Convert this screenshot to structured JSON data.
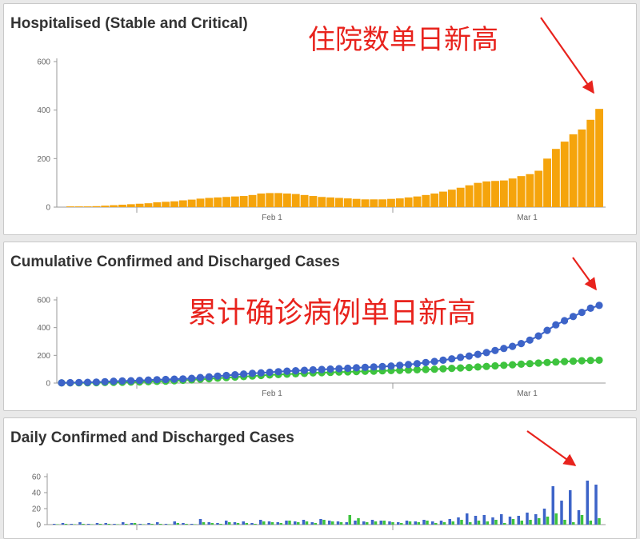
{
  "charts": {
    "hospitalised": {
      "title": "Hospitalised (Stable and Critical)"
    },
    "cumulative": {
      "title": "Cumulative Confirmed and Discharged Cases"
    },
    "daily": {
      "title": "Daily Confirmed and Discharged Cases"
    }
  },
  "annotations": {
    "hospitalised": "住院数单日新高",
    "cumulative": "累计确诊病例单日新高"
  },
  "colors": {
    "hospitalised": "#f5a40c",
    "confirmed": "#3d64c8",
    "discharged": "#3ec33e",
    "annotation": "#e8231d",
    "axis": "#999999"
  },
  "chart_data": [
    {
      "type": "bar",
      "title": "Hospitalised (Stable and Critical)",
      "ylim": [
        0,
        600
      ],
      "y_ticks": [
        "0",
        "200",
        "400",
        "600"
      ],
      "x_ticks": [
        "Feb 1",
        "Mar 1"
      ],
      "series": [
        {
          "values": [
            3,
            3,
            3,
            4,
            6,
            8,
            10,
            12,
            14,
            16,
            20,
            22,
            24,
            28,
            31,
            35,
            38,
            40,
            42,
            44,
            46,
            50,
            56,
            58,
            58,
            56,
            54,
            50,
            46,
            42,
            40,
            38,
            36,
            34,
            32,
            32,
            32,
            34,
            36,
            40,
            44,
            50,
            56,
            64,
            72,
            80,
            90,
            100,
            106,
            108,
            110,
            118,
            128,
            136,
            150,
            200,
            240,
            270,
            300,
            320,
            360,
            405
          ]
        }
      ]
    },
    {
      "type": "line",
      "title": "Cumulative Confirmed and Discharged Cases",
      "ylim": [
        0,
        600
      ],
      "y_ticks": [
        "0",
        "200",
        "400",
        "600"
      ],
      "x_ticks": [
        "Feb 1",
        "Mar 1"
      ],
      "series": [
        {
          "values": [
            2,
            3,
            4,
            5,
            7,
            10,
            13,
            15,
            17,
            19,
            22,
            24,
            26,
            28,
            30,
            34,
            40,
            45,
            50,
            55,
            60,
            65,
            70,
            74,
            78,
            82,
            86,
            89,
            92,
            95,
            98,
            101,
            104,
            107,
            110,
            113,
            116,
            119,
            123,
            128,
            133,
            140,
            148,
            156,
            165,
            175,
            185,
            195,
            207,
            220,
            235,
            250,
            265,
            285,
            310,
            340,
            380,
            420,
            450,
            480,
            510,
            540,
            560
          ]
        },
        {
          "values": [
            1,
            1,
            2,
            2,
            3,
            4,
            5,
            6,
            7,
            8,
            10,
            12,
            14,
            17,
            20,
            23,
            27,
            31,
            35,
            39,
            43,
            47,
            51,
            55,
            58,
            61,
            64,
            67,
            70,
            73,
            75,
            77,
            79,
            81,
            83,
            85,
            86,
            88,
            90,
            92,
            94,
            96,
            98,
            100,
            103,
            106,
            109,
            112,
            116,
            120,
            124,
            128,
            132,
            136,
            140,
            144,
            148,
            152,
            155,
            158,
            161,
            163,
            165
          ]
        }
      ]
    },
    {
      "type": "bar",
      "title": "Daily Confirmed and Discharged Cases",
      "ylim": [
        0,
        60
      ],
      "y_ticks": [
        "0",
        "20",
        "40",
        "60"
      ],
      "series": [
        {
          "values": [
            1,
            2,
            1,
            3,
            1,
            2,
            2,
            1,
            3,
            2,
            1,
            2,
            3,
            1,
            4,
            2,
            1,
            7,
            3,
            2,
            5,
            3,
            4,
            2,
            6,
            4,
            3,
            5,
            4,
            6,
            3,
            7,
            5,
            4,
            3,
            5,
            4,
            6,
            5,
            4,
            3,
            5,
            4,
            6,
            4,
            5,
            7,
            9,
            14,
            11,
            12,
            9,
            13,
            10,
            11,
            15,
            13,
            20,
            48,
            30,
            43,
            18,
            55,
            50
          ]
        },
        {
          "values": [
            0,
            1,
            0,
            1,
            0,
            1,
            1,
            0,
            1,
            2,
            0,
            1,
            1,
            0,
            2,
            1,
            0,
            3,
            2,
            1,
            3,
            2,
            2,
            1,
            4,
            3,
            2,
            5,
            3,
            4,
            2,
            6,
            4,
            3,
            12,
            8,
            3,
            4,
            5,
            3,
            2,
            4,
            3,
            5,
            2,
            3,
            4,
            6,
            3,
            5,
            4,
            6,
            2,
            7,
            5,
            6,
            8,
            10,
            14,
            6,
            3,
            12,
            5,
            8
          ]
        }
      ]
    }
  ]
}
